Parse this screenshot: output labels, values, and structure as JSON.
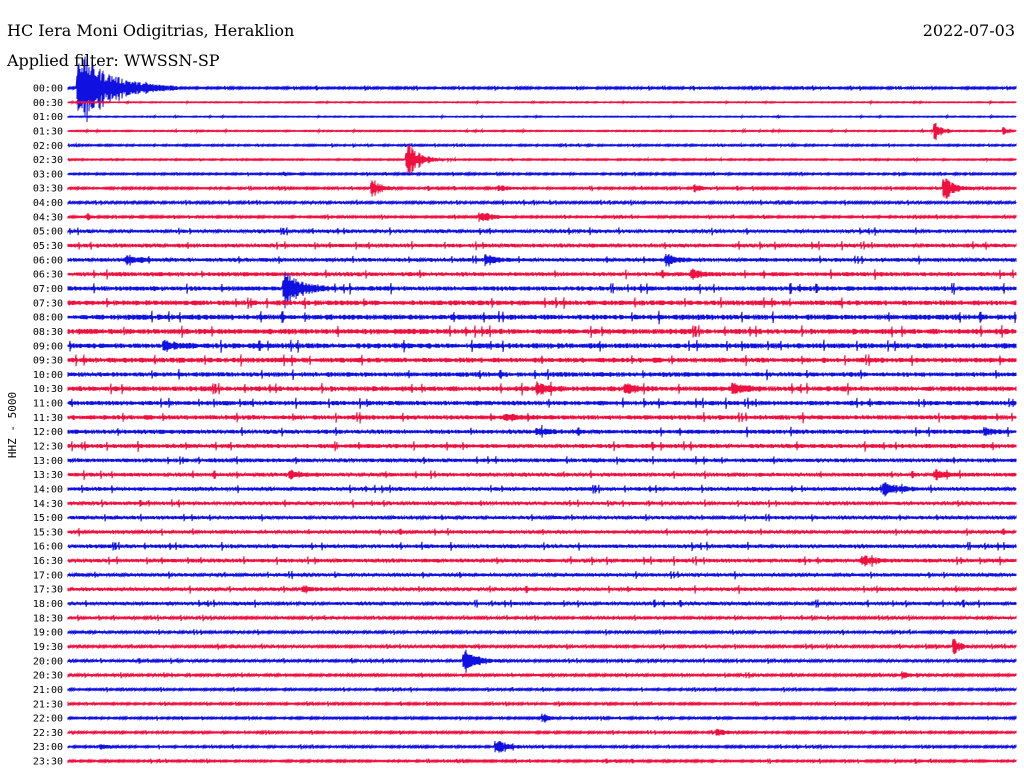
{
  "header": {
    "station": "HC Iera Moni Odigitrias, Heraklion",
    "date": "2022-07-03",
    "filter": "Applied filter: WWSSN-SP"
  },
  "chart_data": {
    "type": "line",
    "ylabel": "HHZ - 5000",
    "rows": [
      "00:00",
      "00:30",
      "01:00",
      "01:30",
      "02:00",
      "02:30",
      "03:00",
      "03:30",
      "04:00",
      "04:30",
      "05:00",
      "05:30",
      "06:00",
      "06:30",
      "07:00",
      "07:30",
      "08:00",
      "08:30",
      "09:00",
      "09:30",
      "10:00",
      "10:30",
      "11:00",
      "11:30",
      "12:00",
      "12:30",
      "13:00",
      "13:30",
      "14:00",
      "14:30",
      "15:00",
      "15:30",
      "16:00",
      "16:30",
      "17:00",
      "17:30",
      "18:00",
      "18:30",
      "19:00",
      "19:30",
      "20:00",
      "20:30",
      "21:00",
      "21:30",
      "22:00",
      "22:30",
      "23:00",
      "23:30"
    ],
    "colors": [
      "#1010e0",
      "#f01040"
    ],
    "noise_levels": [
      1,
      0.5,
      0.5,
      0.6,
      0.8,
      0.7,
      0.9,
      1,
      1.2,
      1,
      1.6,
      1.8,
      1.8,
      2,
      2.2,
      2.4,
      2.6,
      2.6,
      2.5,
      2.4,
      2.2,
      2.4,
      2.2,
      2.2,
      2,
      2,
      1.8,
      1.8,
      1.8,
      1.6,
      1.6,
      1.6,
      1.8,
      1.8,
      1.6,
      1.6,
      1.6,
      1.2,
      1.2,
      1.2,
      1.2,
      1.2,
      1,
      1,
      1,
      1,
      1,
      1
    ],
    "events": [
      {
        "row": 0,
        "minute": 0.3,
        "amp": 40,
        "dur_min": 3.2
      },
      {
        "row": 3,
        "minute": 27.4,
        "amp": 12,
        "dur_min": 0.6
      },
      {
        "row": 3,
        "minute": 29.6,
        "amp": 5,
        "dur_min": 0.3
      },
      {
        "row": 5,
        "minute": 10.7,
        "amp": 20,
        "dur_min": 1.2
      },
      {
        "row": 7,
        "minute": 9.6,
        "amp": 12,
        "dur_min": 0.8
      },
      {
        "row": 7,
        "minute": 27.7,
        "amp": 14,
        "dur_min": 1.0
      },
      {
        "row": 7,
        "minute": 19.8,
        "amp": 5,
        "dur_min": 0.6
      },
      {
        "row": 7,
        "minute": 13.6,
        "amp": 4,
        "dur_min": 0.9
      },
      {
        "row": 9,
        "minute": 13.0,
        "amp": 7,
        "dur_min": 1.2
      },
      {
        "row": 9,
        "minute": 0.6,
        "amp": 6,
        "dur_min": 0.3
      },
      {
        "row": 12,
        "minute": 1.8,
        "amp": 6,
        "dur_min": 1.0
      },
      {
        "row": 12,
        "minute": 13.2,
        "amp": 6,
        "dur_min": 1.0
      },
      {
        "row": 12,
        "minute": 18.9,
        "amp": 7,
        "dur_min": 1.0
      },
      {
        "row": 13,
        "minute": 19.7,
        "amp": 5,
        "dur_min": 1.0
      },
      {
        "row": 14,
        "minute": 6.8,
        "amp": 18,
        "dur_min": 1.6
      },
      {
        "row": 18,
        "minute": 3.0,
        "amp": 6,
        "dur_min": 1.2
      },
      {
        "row": 21,
        "minute": 14.8,
        "amp": 8,
        "dur_min": 1.0
      },
      {
        "row": 21,
        "minute": 17.6,
        "amp": 6,
        "dur_min": 1.0
      },
      {
        "row": 21,
        "minute": 21.0,
        "amp": 8,
        "dur_min": 1.0
      },
      {
        "row": 23,
        "minute": 13.8,
        "amp": 4,
        "dur_min": 1.0
      },
      {
        "row": 24,
        "minute": 14.8,
        "amp": 5,
        "dur_min": 1.0
      },
      {
        "row": 24,
        "minute": 29.0,
        "amp": 5,
        "dur_min": 0.6
      },
      {
        "row": 27,
        "minute": 7.0,
        "amp": 5,
        "dur_min": 1.0
      },
      {
        "row": 27,
        "minute": 27.4,
        "amp": 6,
        "dur_min": 1.0
      },
      {
        "row": 28,
        "minute": 25.8,
        "amp": 8,
        "dur_min": 1.2
      },
      {
        "row": 33,
        "minute": 25.1,
        "amp": 7,
        "dur_min": 1.0
      },
      {
        "row": 35,
        "minute": 7.4,
        "amp": 4,
        "dur_min": 1.0
      },
      {
        "row": 39,
        "minute": 28.0,
        "amp": 10,
        "dur_min": 0.6
      },
      {
        "row": 40,
        "minute": 12.5,
        "amp": 14,
        "dur_min": 1.2
      },
      {
        "row": 41,
        "minute": 26.4,
        "amp": 4,
        "dur_min": 0.6
      },
      {
        "row": 44,
        "minute": 15.0,
        "amp": 6,
        "dur_min": 0.6
      },
      {
        "row": 45,
        "minute": 20.5,
        "amp": 5,
        "dur_min": 0.8
      },
      {
        "row": 46,
        "minute": 13.5,
        "amp": 8,
        "dur_min": 1.2
      },
      {
        "row": 46,
        "minute": 1.0,
        "amp": 4,
        "dur_min": 0.6
      }
    ]
  }
}
